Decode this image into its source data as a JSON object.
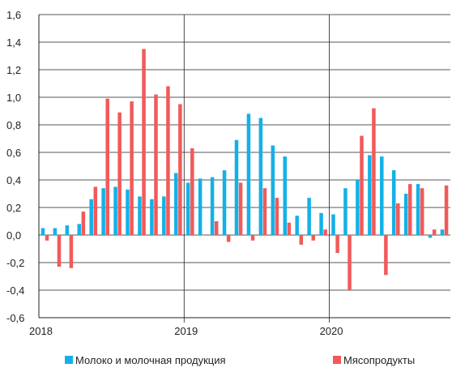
{
  "chart_data": {
    "type": "bar",
    "ylim": [
      -0.6,
      1.6
    ],
    "yticks": [
      "1,6",
      "1,4",
      "1,2",
      "1,0",
      "0,8",
      "0,6",
      "0,4",
      "0,2",
      "0,0",
      "-0,2",
      "-0,4",
      "-0,6"
    ],
    "ytick_values": [
      1.6,
      1.4,
      1.2,
      1.0,
      0.8,
      0.6,
      0.4,
      0.2,
      0.0,
      -0.2,
      -0.4,
      -0.6
    ],
    "xtick_labels": [
      "2018",
      "2019",
      "2020"
    ],
    "year_divider_after_month": [
      12,
      24
    ],
    "grid": "horizontal",
    "legend_position": "bottom",
    "series": [
      {
        "name": "Молоко и молочная продукция",
        "color": "#14b1e7",
        "values": [
          0.05,
          0.05,
          0.07,
          0.08,
          0.26,
          0.34,
          0.35,
          0.33,
          0.28,
          0.26,
          0.28,
          0.45,
          0.38,
          0.41,
          0.42,
          0.47,
          0.69,
          0.88,
          0.85,
          0.65,
          0.57,
          0.14,
          0.27,
          0.16,
          0.15,
          0.34,
          0.4,
          0.58,
          0.57,
          0.47,
          0.3,
          0.37,
          -0.02,
          0.04
        ]
      },
      {
        "name": "Мясопродукты",
        "color": "#f15a5a",
        "values": [
          -0.04,
          -0.23,
          -0.24,
          0.17,
          0.35,
          0.99,
          0.89,
          0.97,
          1.35,
          1.02,
          1.08,
          0.95,
          0.63,
          0.0,
          0.1,
          -0.05,
          0.38,
          -0.04,
          0.34,
          0.27,
          0.09,
          -0.07,
          -0.04,
          0.04,
          -0.13,
          -0.4,
          0.72,
          0.92,
          -0.29,
          0.23,
          0.37,
          0.34,
          0.04,
          0.36
        ]
      }
    ]
  }
}
